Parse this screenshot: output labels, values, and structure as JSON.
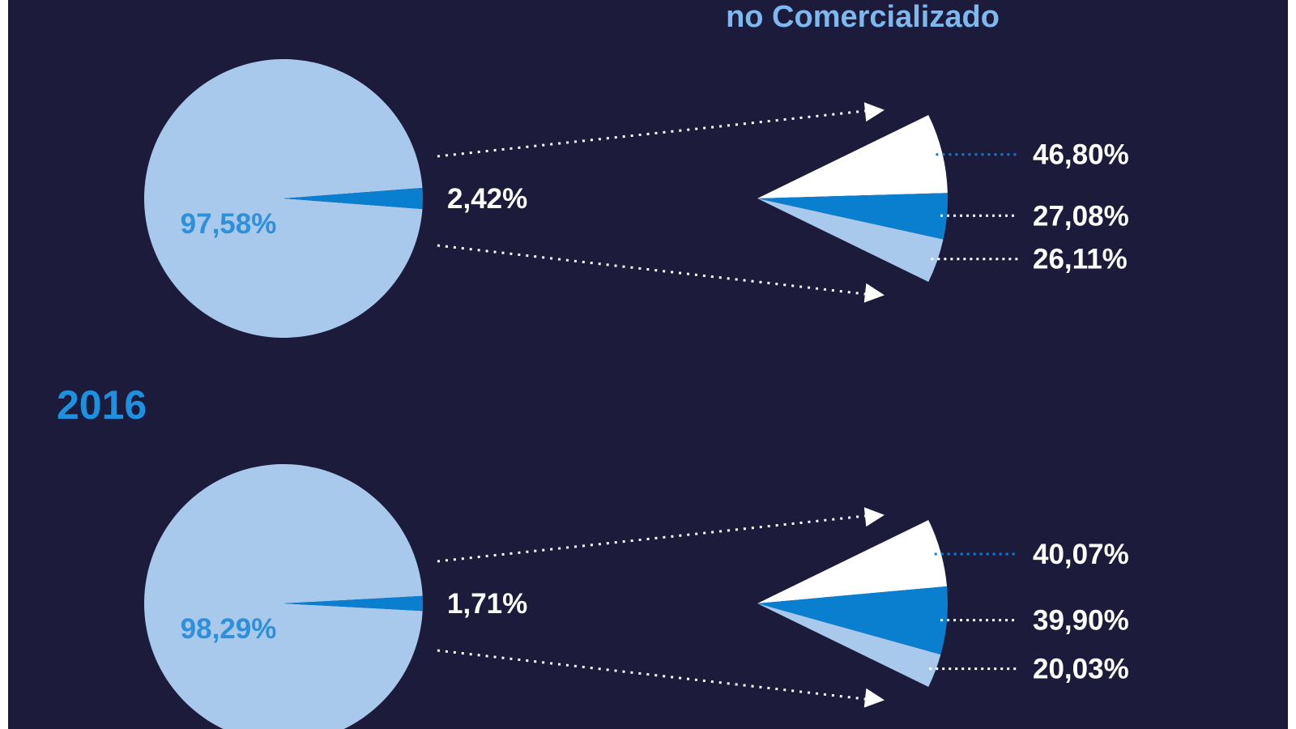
{
  "chart_data": {
    "type": "pie",
    "header": "no Comercializado",
    "colors": {
      "background": "#1d1b3c",
      "light_blue": "#a8c9ec",
      "mid_blue": "#0a7fd0",
      "white": "#ffffff",
      "heading_blue": "#1e90e0",
      "header_blue": "#7db9ef"
    },
    "charts": [
      {
        "year": "",
        "main": [
          {
            "label": "97,58%",
            "value": 97.58
          },
          {
            "label": "2,42%",
            "value": 2.42
          }
        ],
        "breakdown": [
          {
            "label": "46,80%",
            "value": 46.8,
            "color": "#ffffff"
          },
          {
            "label": "27,08%",
            "value": 27.08,
            "color": "#0a7fd0"
          },
          {
            "label": "26,11%",
            "value": 26.11,
            "color": "#a8c9ec"
          }
        ]
      },
      {
        "year": "2016",
        "main": [
          {
            "label": "98,29%",
            "value": 98.29
          },
          {
            "label": "1,71%",
            "value": 1.71
          }
        ],
        "breakdown": [
          {
            "label": "40,07%",
            "value": 40.07,
            "color": "#ffffff"
          },
          {
            "label": "39,90%",
            "value": 39.9,
            "color": "#0a7fd0"
          },
          {
            "label": "20,03%",
            "value": 20.03,
            "color": "#a8c9ec"
          }
        ]
      }
    ]
  }
}
